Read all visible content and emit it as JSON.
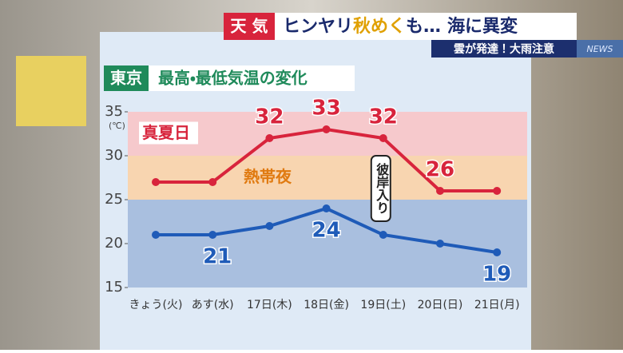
{
  "header": {
    "badge": "天 気",
    "headline_parts": [
      "ヒンヤリ",
      "秋めく",
      "も…",
      "海に異変"
    ],
    "subheadline": "雲が発達！大雨注意",
    "logo": "NEWS"
  },
  "chart_data": {
    "type": "line",
    "location": "東京",
    "title": "最高・最低気温の変化",
    "y_unit": "(℃)",
    "categories": [
      "きょう(火)",
      "あす(水)",
      "17日(木)",
      "18日(金)",
      "19日(土)",
      "20日(日)",
      "21日(月)"
    ],
    "series": [
      {
        "name": "最高気温",
        "color": "#d8243c",
        "values": [
          27,
          27,
          32,
          33,
          32,
          26,
          26
        ],
        "value_labels": [
          null,
          null,
          "32",
          "33",
          "32",
          "26",
          null
        ]
      },
      {
        "name": "最低気温",
        "color": "#1f5bb8",
        "values": [
          21,
          21,
          22,
          24,
          21,
          20,
          19
        ],
        "value_labels": [
          null,
          "21",
          null,
          "24",
          null,
          null,
          "19"
        ]
      }
    ],
    "ylim": [
      15,
      35
    ],
    "yticks": [
      15,
      20,
      25,
      30,
      35
    ],
    "bands": [
      {
        "label": "真夏日",
        "from": 30,
        "to": 35,
        "color": "#f6c9cc",
        "text_color": "#d8243c"
      },
      {
        "label": "熱帯夜",
        "from": 25,
        "to": 30,
        "color": "#f8d5b0",
        "text_color": "#e07a10"
      },
      {
        "from": 15,
        "to": 25,
        "color": "#a9bfdf"
      }
    ],
    "annotation": {
      "text": "彼岸入り",
      "category_index": 4
    }
  }
}
